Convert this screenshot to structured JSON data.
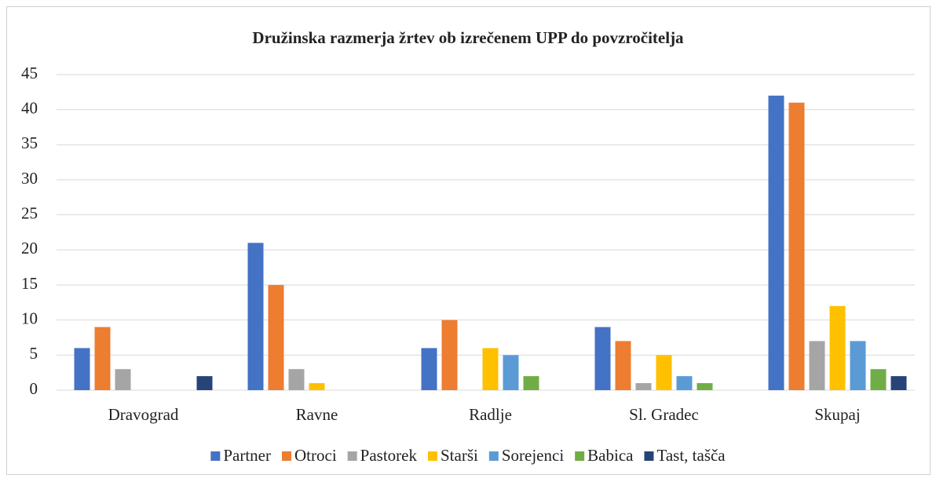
{
  "chart_data": {
    "type": "bar",
    "title": "Družinska  razmerja žrtev ob izrečenem UPP do povzročitelja",
    "categories": [
      "Dravograd",
      "Ravne",
      "Radlje",
      "Sl. Gradec",
      "Skupaj"
    ],
    "series": [
      {
        "name": "Partner",
        "color": "#4472c4",
        "values": [
          6,
          21,
          6,
          9,
          42
        ]
      },
      {
        "name": "Otroci",
        "color": "#ed7d31",
        "values": [
          9,
          15,
          10,
          7,
          41
        ]
      },
      {
        "name": "Pastorek",
        "color": "#a5a5a5",
        "values": [
          3,
          3,
          0,
          1,
          7
        ]
      },
      {
        "name": "Starši",
        "color": "#ffc000",
        "values": [
          0,
          1,
          6,
          5,
          12
        ]
      },
      {
        "name": "Sorejenci",
        "color": "#5b9bd5",
        "values": [
          0,
          0,
          5,
          2,
          7
        ]
      },
      {
        "name": "Babica",
        "color": "#70ad47",
        "values": [
          0,
          0,
          2,
          1,
          3
        ]
      },
      {
        "name": "Tast, tašča",
        "color": "#264478",
        "values": [
          2,
          0,
          0,
          0,
          2
        ]
      }
    ],
    "ylim": [
      0,
      45
    ],
    "yticks": [
      0,
      5,
      10,
      15,
      20,
      25,
      30,
      35,
      40,
      45
    ],
    "grid": true,
    "legend": "bottom"
  }
}
